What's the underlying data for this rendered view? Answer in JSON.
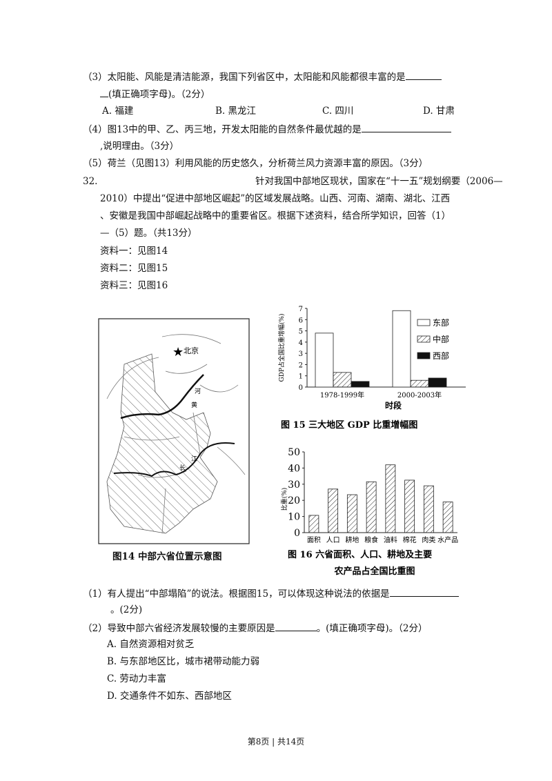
{
  "q3": {
    "text": "（3）太阳能、风能是清洁能源，我国下列省区中，太阳能和风能都很丰富的是",
    "cont": "(填正确项字母)。（2分）",
    "options": [
      "A.  福建",
      "B.  黑龙江",
      "C.  四川",
      "D.  甘肃"
    ]
  },
  "q4": {
    "text": "（4）图13中的甲、乙、丙三地，开发太阳能的自然条件最优越的是",
    "cont": ",说明理由。（3分）"
  },
  "q5": {
    "text": "（5）荷兰（见图13）利用风能的历史悠久，分析荷兰风力资源丰富的原因。（3分）"
  },
  "q32": {
    "number": "32.",
    "lines": [
      "针对我国中部地区现状，国家在“十一五”规划纲要（2006—",
      "2010）中提出“促进中部地区崛起”的区域发展战略。山西、河南、湖南、湖北、江西",
      "、安徽是我国中部崛起战略中的重要省区。根据下述资料，结合所学知识，回答（1）",
      "—（5）题。（共13分）"
    ],
    "materials": [
      "资料一：见图14",
      "资料二：见图15",
      "资料三：见图16"
    ]
  },
  "fig14": {
    "caption": "图14   中部六省位置示意图",
    "labels": {
      "beijing": "北京",
      "huanghe_1": "黄",
      "huanghe_2": "河",
      "changjiang_1": "长",
      "changjiang_2": "江"
    }
  },
  "chart_data": [
    {
      "type": "bar",
      "title": "图 15   三大地区 GDP 比重增幅图",
      "xlabel": "时段",
      "ylabel": "GDP占全国比重增幅(%)",
      "categories": [
        "1978-1999年",
        "2000-2003年"
      ],
      "ylim": [
        0,
        7
      ],
      "yticks": [
        0,
        1,
        2,
        3,
        4,
        5,
        6,
        7
      ],
      "legend": "top-right",
      "series": [
        {
          "name": "东部",
          "values": [
            4.8,
            6.8
          ],
          "fill": "white"
        },
        {
          "name": "中部",
          "values": [
            1.3,
            0.6
          ],
          "fill": "hatched"
        },
        {
          "name": "西部",
          "values": [
            0.5,
            0.8
          ],
          "fill": "black"
        }
      ]
    },
    {
      "type": "bar",
      "title": "图 16   六省面积、人口、耕地及主要",
      "title2": "农产品占全国比重图",
      "ylabel": "比重(%)",
      "categories": [
        "面积",
        "人口",
        "耕地",
        "粮食",
        "油料",
        "棉花",
        "肉类",
        "水产品"
      ],
      "values": [
        10.7,
        27,
        23.5,
        31.5,
        42,
        32.5,
        29,
        19
      ],
      "ylim": [
        0,
        50
      ],
      "yticks": [
        0,
        10,
        20,
        30,
        40,
        50
      ],
      "fill": "hatched"
    }
  ],
  "sub1": {
    "text": "（1）有人提出“中部塌陷”的说法。根据图15，可以体现这种说法的依据是",
    "cont": "。(2分)"
  },
  "sub2": {
    "text": "（2）导致中部六省经济发展较慢的主要原因是",
    "after": "。(填正确项字母)。（2分）",
    "options": [
      "A.  自然资源相对贫乏",
      "B.  与东部地区比，城市裙带动能力弱",
      "C.  劳动力丰富",
      "D.  交通条件不如东、西部地区"
    ]
  },
  "footer": "第8页 | 共14页"
}
